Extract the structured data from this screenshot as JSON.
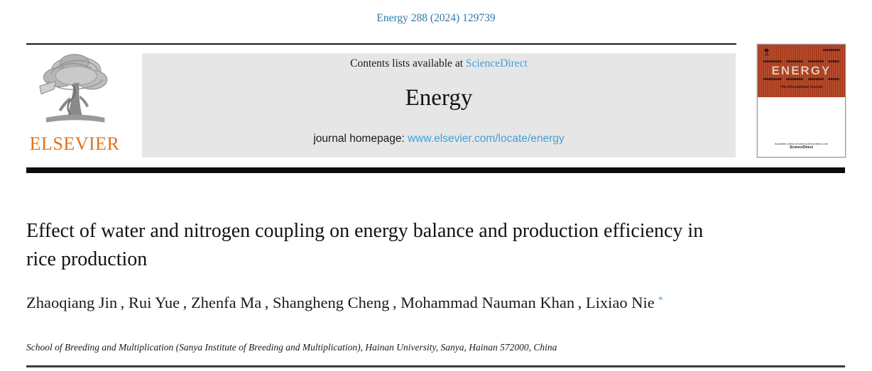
{
  "page": {
    "journal_ref": "Energy 288 (2024) 129739"
  },
  "header": {
    "contents_prefix": "Contents lists available at ",
    "contents_link": "ScienceDirect",
    "journal_title": "Energy",
    "homepage_prefix": "journal homepage: ",
    "homepage_link": "www.elsevier.com/locate/energy",
    "elsevier_logo_text": "ELSEVIER"
  },
  "cover": {
    "title": "ENERGY",
    "subtitle": "The International Journal",
    "footer_line1": "Available online at www.sciencedirect.com",
    "footer_line2": "ScienceDirect"
  },
  "article": {
    "title": "Effect of water and nitrogen coupling on energy balance and production efficiency in rice production",
    "authors": [
      "Zhaoqiang Jin",
      "Rui Yue",
      "Zhenfa Ma",
      "Shangheng Cheng",
      "Mohammad Nauman Khan",
      "Lixiao Nie"
    ],
    "author_separator": " , ",
    "corresponding_mark": "*",
    "affiliation": "School of Breeding and Multiplication (Sanya Institute of Breeding and Multiplication), Hainan University, Sanya, Hainan 572000, China"
  },
  "colors": {
    "citation_teal": "#2d7aa3",
    "link_blue": "#41a0da",
    "elsevier_orange": "#e0711c",
    "cover_red": "#b4401f",
    "banner_gray": "#e6e6e6",
    "divider_black": "#0c0c0c"
  }
}
